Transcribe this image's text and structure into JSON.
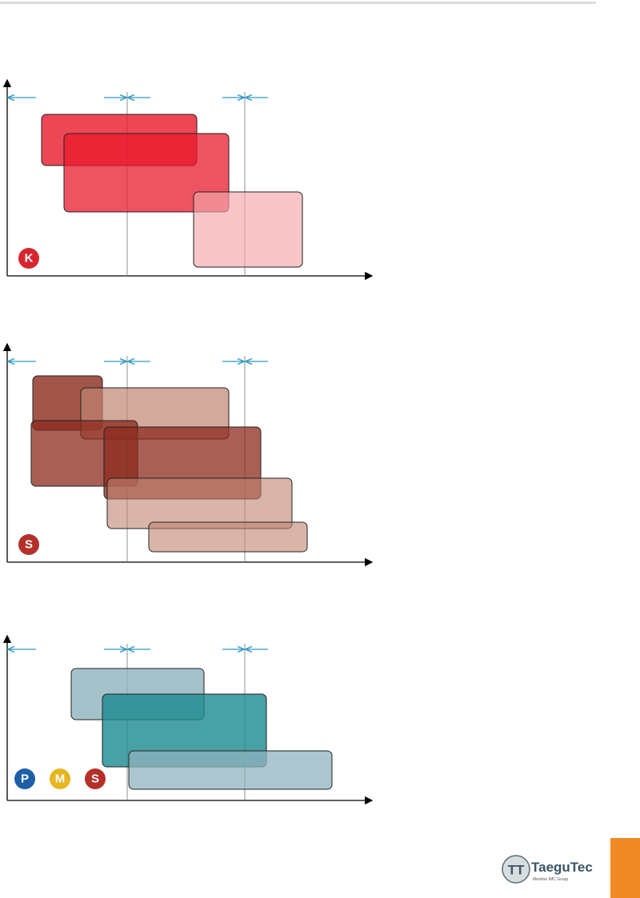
{
  "panels": [
    {
      "icons": [
        "K"
      ]
    },
    {
      "icons": [
        "S"
      ]
    },
    {
      "icons": [
        "P",
        "M",
        "S"
      ]
    }
  ],
  "logo": {
    "name": "TaeguTec",
    "tagline": "Member IMC Group"
  }
}
